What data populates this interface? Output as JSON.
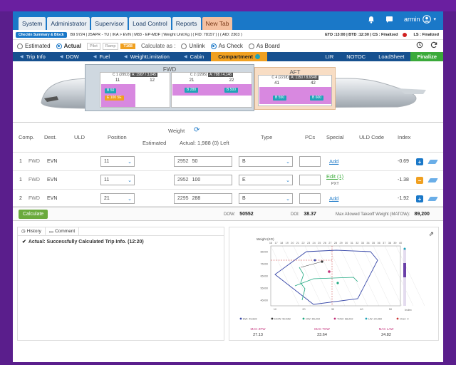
{
  "header": {
    "tabs": [
      {
        "label": "System"
      },
      {
        "label": "Administrator"
      },
      {
        "label": "Supervisor"
      },
      {
        "label": "Load Control"
      },
      {
        "label": "Reports"
      },
      {
        "label": "New Tab",
        "active": true
      }
    ],
    "user": "armin",
    "bar_color": "#1a78c8"
  },
  "flight": {
    "checkin_btn": "Checkin Summary & Block",
    "info": "B9 9724 | 25APR - TU | IKA > EVN | M83 - EP-MDF | Weight Unit:Kg | ( FID: 78157 ) | ( AID: 2303 )",
    "right_info": "ETD :13:00 | BTD :12:30 | CS : Finalized",
    "ls": "LS : Finalized"
  },
  "controls": {
    "modes": [
      {
        "label": "Estimated",
        "on": false
      },
      {
        "label": "Actual",
        "on": true
      }
    ],
    "pilot_label": "Pilot",
    "ramp_label": "Ramp",
    "tag": "T168",
    "calc_as_label": "Calculate as :",
    "calc_modes": [
      {
        "label": "Unlink",
        "on": false
      },
      {
        "label": "As Check",
        "on": true
      },
      {
        "label": "As Board",
        "on": false
      }
    ]
  },
  "subnav": {
    "items": [
      "Trip Info",
      "DOW",
      "Fuel",
      "WeightLimitation",
      "Cabin",
      "Compartment"
    ],
    "active": "Compartment",
    "right": [
      "LIR",
      "NOTOC",
      "LoadSheet"
    ],
    "finalize": "Finalize"
  },
  "compartments": {
    "fwd_label": "FWD",
    "aft_label": "AFT",
    "fwd": [
      {
        "name": "C 1 (2952)",
        "badge": "A: 1907 / 3,045",
        "nums": [
          "11",
          "12"
        ],
        "pills": [
          "B 50",
          "E 100 5E"
        ]
      },
      {
        "name": "C 2 (2295)",
        "badge": "A: 788 / 4,146",
        "nums": [
          "21",
          "22"
        ],
        "pills": [
          "B 288",
          "B 500"
        ]
      }
    ],
    "aft": [
      {
        "name": "C 4 (2218)",
        "badge": "A: 1150 / 8,6548",
        "nums": [
          "41",
          "42"
        ],
        "pills": [
          "B 550",
          "B 600"
        ]
      }
    ]
  },
  "table": {
    "headers": {
      "comp": "Comp.",
      "dest": "Dest.",
      "uld": "ULD",
      "position": "Position",
      "weight": "Weight",
      "estimated": "Estimated",
      "actual": "Actual: 1,988 (0) Left",
      "type": "Type",
      "pcs": "PCs",
      "special": "Special",
      "uld_code": "ULD Code",
      "index": "Index"
    },
    "rows": [
      {
        "comp": "1",
        "sub": "FWD",
        "dest": "EVN",
        "position": "11",
        "cap": "2952",
        "actual": "50",
        "type": "B",
        "special": "Add",
        "special_sub": "",
        "index": "-0.69",
        "btn": "+"
      },
      {
        "comp": "1",
        "sub": "FWD",
        "dest": "EVN",
        "position": "11",
        "cap": "2952",
        "actual": "100",
        "type": "E",
        "special": "Edit (1)",
        "special_sub": "PXT",
        "index": "-1.38",
        "btn": "−"
      },
      {
        "comp": "2",
        "sub": "FWD",
        "dest": "EVN",
        "position": "21",
        "cap": "2295",
        "actual": "288",
        "type": "B",
        "special": "Add",
        "special_sub": "",
        "index": "-1.92",
        "btn": "+"
      }
    ]
  },
  "calc": {
    "button": "Calculate",
    "dow_label": "DOW:",
    "dow": "50552",
    "doi_label": "DOI:",
    "doi": "38.37",
    "matow_label": "Max Allowed Takeoff Weight (MATOW):",
    "matow": "89,200"
  },
  "history": {
    "tabs": [
      "History",
      "Comment"
    ],
    "message": "Actual: Successfully Calculated Trip Info. (12:20)"
  },
  "chart_data": {
    "type": "scatter",
    "title": "",
    "ylabel": "Weight (KG)",
    "xlabel": "Index",
    "top_ticks": [
      "16",
      "17",
      "18",
      "19",
      "20",
      "21",
      "22",
      "23",
      "24",
      "25",
      "26",
      "27",
      "28",
      "29",
      "30",
      "31",
      "32",
      "33",
      "34",
      "35",
      "36",
      "37",
      "38",
      "39",
      "40"
    ],
    "y_ticks": [
      "86000",
      "76000",
      "66000",
      "56000",
      "46000"
    ],
    "x_ticks": [
      "10",
      "20",
      "30",
      "40",
      "50"
    ],
    "legend": [
      "BW: 49,892",
      "DOW: 50,552",
      "OW: 65,202",
      "TOW: 68,202",
      "LW: 20,960",
      "Over: 0"
    ],
    "mac": [
      {
        "label": "MAC ZFW",
        "value": "27.13"
      },
      {
        "label": "MAC TOW",
        "value": "23.64"
      },
      {
        "label": "MAC LAW",
        "value": "24.82"
      }
    ]
  }
}
